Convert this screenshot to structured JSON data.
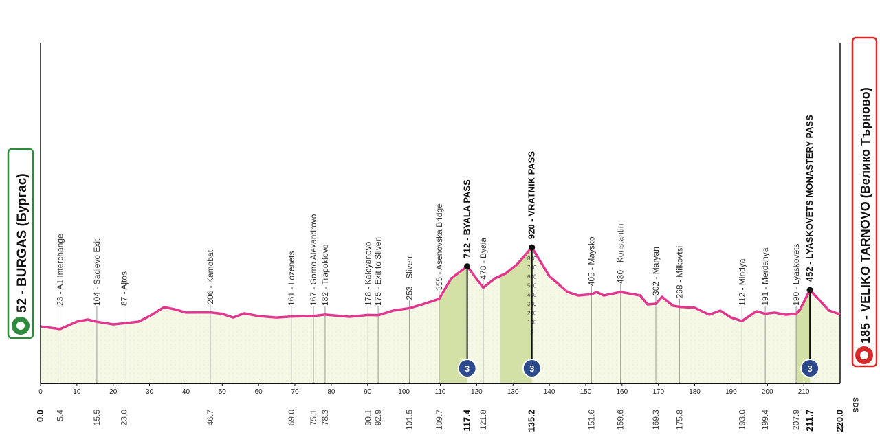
{
  "chart_data": {
    "type": "line",
    "color": "#e0378f",
    "xlim": [
      0,
      220
    ],
    "xticks": [
      0,
      10,
      20,
      30,
      40,
      50,
      60,
      70,
      80,
      90,
      100,
      110,
      120,
      130,
      140,
      150,
      160,
      170,
      180,
      190,
      200,
      210
    ],
    "ylim": [
      -574,
      3170
    ],
    "yticks": [
      0,
      100,
      200,
      300,
      400,
      500,
      600,
      700,
      800
    ],
    "x": [
      0,
      5.4,
      10,
      13,
      15.5,
      20,
      23,
      27,
      30,
      34,
      37,
      40,
      46.7,
      50,
      53,
      56,
      60,
      65,
      69,
      75.1,
      78.3,
      85,
      90.1,
      92.9,
      97,
      101.5,
      105,
      109.7,
      113,
      117.4,
      121.8,
      125,
      128,
      131,
      135.2,
      140,
      145,
      148,
      151.6,
      153,
      155,
      159.6,
      165,
      167,
      169.3,
      171,
      174,
      175.8,
      180,
      184,
      187,
      190,
      193,
      197,
      199.4,
      202,
      205,
      207.9,
      209,
      211.7,
      214,
      217,
      220
    ],
    "values": [
      52,
      23,
      105,
      128,
      104,
      75,
      87,
      105,
      166,
      264,
      240,
      204,
      206,
      190,
      150,
      196,
      166,
      150,
      161,
      167,
      182,
      158,
      178,
      175,
      226,
      253,
      294,
      355,
      580,
      712,
      478,
      580,
      634,
      730,
      920,
      604,
      430,
      392,
      405,
      430,
      392,
      430,
      392,
      294,
      302,
      377,
      280,
      268,
      257,
      181,
      226,
      150,
      112,
      219,
      191,
      204,
      181,
      190,
      240,
      452,
      355,
      226,
      185
    ],
    "start": {
      "label": "52 - BURGAS (Бургас)",
      "km": {
        "value": 0,
        "label": "0.0"
      }
    },
    "finish": {
      "label": "185 - VELIKO TARNOVO (Велико Търново)",
      "km": {
        "value": 220,
        "label": "220.0"
      }
    },
    "waypoints": [
      {
        "label": "23 - A1 Interchange",
        "km": 5.4
      },
      {
        "label": "104 - Sadievo Exit",
        "km": 15.5
      },
      {
        "label": "87 - Ajtos",
        "km": {
          "value": 23,
          "label": "23.0"
        }
      },
      {
        "label": "206 - Kamobat",
        "km": 46.7
      },
      {
        "label": "161 - Lozenets",
        "km": {
          "value": 69,
          "label": "69.0"
        }
      },
      {
        "label": "167 - Gorno Alexandrovo",
        "km": 75.1
      },
      {
        "label": "182 - Trapoklovo",
        "km": 78.3
      },
      {
        "label": "178 - Kaloyanovo",
        "km": 90.1
      },
      {
        "label": "175 - Exit to Sliven",
        "km": 92.9
      },
      {
        "label": "253 - Sliven",
        "km": 101.5
      },
      {
        "label": "355 - Asenovska Bridge",
        "km": 109.7
      },
      {
        "label": "712 - BYALA PASS",
        "km": 117.4,
        "category": 3,
        "climb_start": 109.7
      },
      {
        "label": "478 - Byala",
        "km": 121.8
      },
      {
        "label": "920 - VRATNIK PASS",
        "km": 135.2,
        "category": 3,
        "climb_start": 126.5
      },
      {
        "label": "405 - Maysko",
        "km": 151.6
      },
      {
        "label": "430 - Konstantin",
        "km": 159.6
      },
      {
        "label": "302 - Maryan",
        "km": 169.3
      },
      {
        "label": "268 - Milkovtsi",
        "km": 175.8
      },
      {
        "label": "112 - Mindya",
        "km": {
          "value": 193,
          "label": "193.0"
        }
      },
      {
        "label": "191 - Merdanya",
        "km": 199.4
      },
      {
        "label": "190 - Lyaskovets",
        "km": 207.9
      },
      {
        "label": "452 - LYASKOVETS MONASTERY PASS",
        "km": 211.7,
        "category": 3,
        "climb_start": 207.9
      }
    ],
    "logo": "SDS"
  }
}
